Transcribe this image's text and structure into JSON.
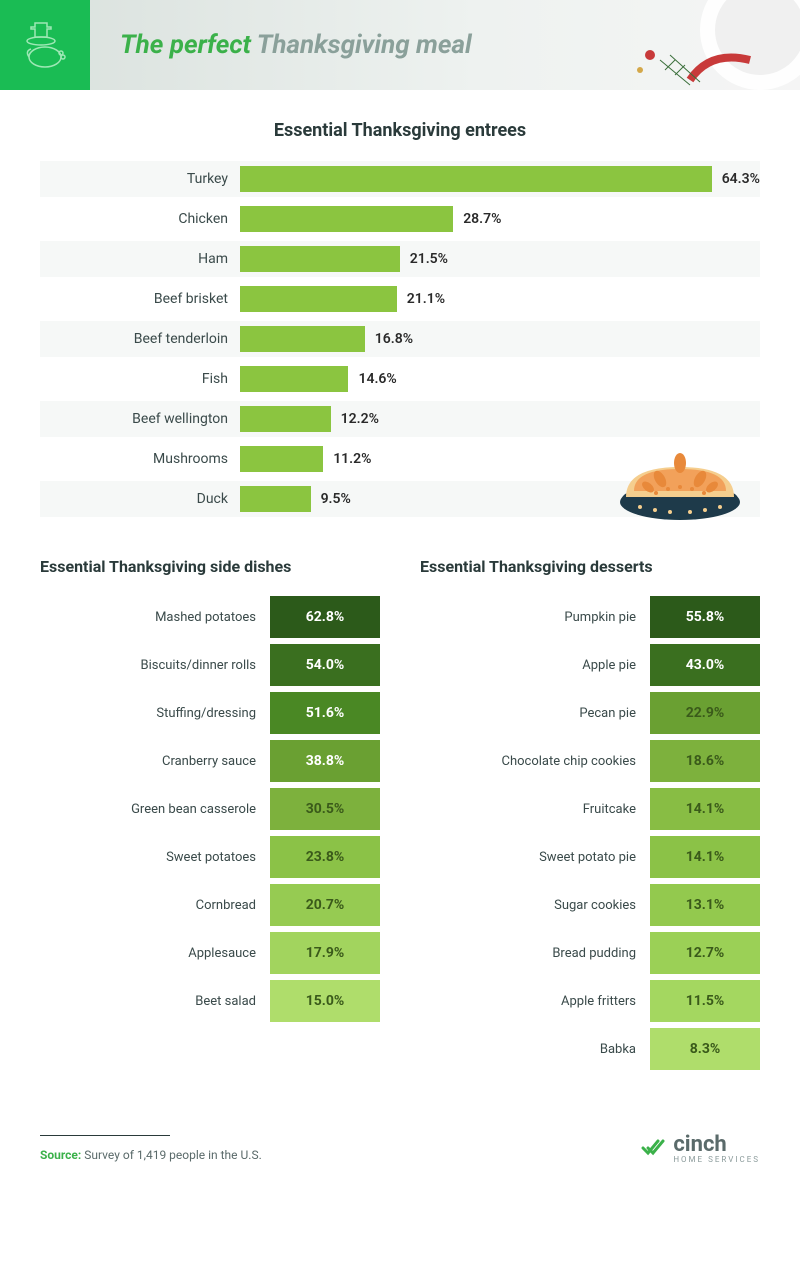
{
  "header": {
    "title_part1": "The perfect",
    "title_part2": "Thanksgiving meal",
    "icon_bg": "#1abc54",
    "title_green": "#3bb14a",
    "title_gray": "#8aa09a"
  },
  "entrees": {
    "title": "Essential Thanksgiving entrees",
    "bar_color": "#8bc540",
    "scale_max": 70,
    "items": [
      {
        "label": "Turkey",
        "value": 64.3
      },
      {
        "label": "Chicken",
        "value": 28.7
      },
      {
        "label": "Ham",
        "value": 21.5
      },
      {
        "label": "Beef brisket",
        "value": 21.1
      },
      {
        "label": "Beef tenderloin",
        "value": 16.8
      },
      {
        "label": "Fish",
        "value": 14.6
      },
      {
        "label": "Beef wellington",
        "value": 12.2
      },
      {
        "label": "Mushrooms",
        "value": 11.2
      },
      {
        "label": "Duck",
        "value": 9.5
      }
    ]
  },
  "sides": {
    "title": "Essential Thanksgiving side dishes",
    "items": [
      {
        "label": "Mashed potatoes",
        "value": 62.8,
        "color": "#2c5a1a",
        "text": "#ffffff"
      },
      {
        "label": "Biscuits/dinner rolls",
        "value": 54.0,
        "color": "#3a6f1f",
        "text": "#ffffff"
      },
      {
        "label": "Stuffing/dressing",
        "value": 51.6,
        "color": "#4a8824",
        "text": "#ffffff"
      },
      {
        "label": "Cranberry sauce",
        "value": 38.8,
        "color": "#6aa032",
        "text": "#ffffff"
      },
      {
        "label": "Green bean casserole",
        "value": 30.5,
        "color": "#7db13d",
        "text": "#3a5a1a"
      },
      {
        "label": "Sweet potatoes",
        "value": 23.8,
        "color": "#8bc247",
        "text": "#3a5a1a"
      },
      {
        "label": "Cornbread",
        "value": 20.7,
        "color": "#96cb52",
        "text": "#3a5a1a"
      },
      {
        "label": "Applesauce",
        "value": 17.9,
        "color": "#a2d45e",
        "text": "#3a5a1a"
      },
      {
        "label": "Beet salad",
        "value": 15.0,
        "color": "#afdd6b",
        "text": "#3a5a1a"
      }
    ]
  },
  "desserts": {
    "title": "Essential Thanksgiving desserts",
    "items": [
      {
        "label": "Pumpkin pie",
        "value": 55.8,
        "color": "#2c5a1a",
        "text": "#ffffff"
      },
      {
        "label": "Apple pie",
        "value": 43.0,
        "color": "#3a6f1f",
        "text": "#ffffff"
      },
      {
        "label": "Pecan pie",
        "value": 22.9,
        "color": "#6aa032",
        "text": "#3a5a1a"
      },
      {
        "label": "Chocolate chip cookies",
        "value": 18.6,
        "color": "#7db13d",
        "text": "#3a5a1a"
      },
      {
        "label": "Fruitcake",
        "value": 14.1,
        "color": "#88bd44",
        "text": "#3a5a1a"
      },
      {
        "label": "Sweet potato pie",
        "value": 14.1,
        "color": "#8bc247",
        "text": "#3a5a1a"
      },
      {
        "label": "Sugar cookies",
        "value": 13.1,
        "color": "#93c94e",
        "text": "#3a5a1a"
      },
      {
        "label": "Bread pudding",
        "value": 12.7,
        "color": "#9bd056",
        "text": "#3a5a1a"
      },
      {
        "label": "Apple fritters",
        "value": 11.5,
        "color": "#a4d760",
        "text": "#3a5a1a"
      },
      {
        "label": "Babka",
        "value": 8.3,
        "color": "#afdd6b",
        "text": "#3a5a1a"
      }
    ]
  },
  "footer": {
    "source_label": "Source:",
    "source_text": "Survey of 1,419 people in the U.S.",
    "logo_text": "cinch",
    "logo_sub": "HOME SERVICES",
    "logo_accent": "#3bb14a"
  },
  "pie_decor": {
    "crust": "#f5ce8e",
    "filling": "#f2a15a",
    "tin": "#1e3a4a",
    "accent": "#e8893a"
  }
}
